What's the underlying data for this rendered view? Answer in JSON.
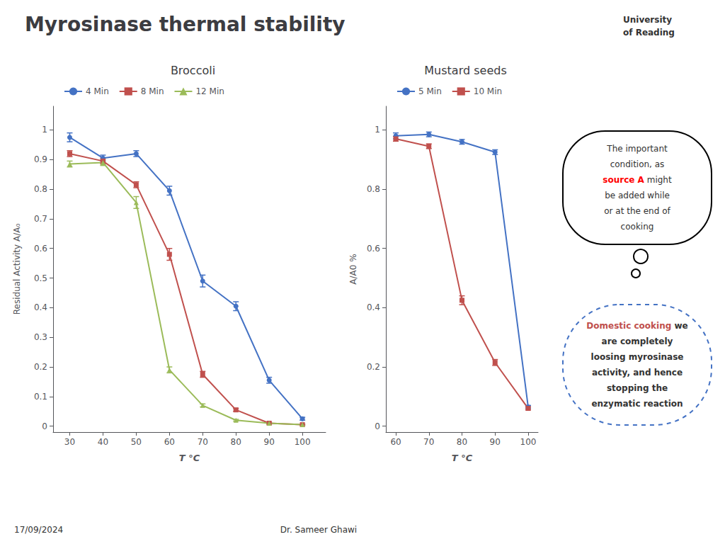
{
  "title": "Myrosinase thermal stability",
  "annotations": [
    {
      "color": "black",
      "lines": [
        "The important",
        "condition, as",
        [
          {
            "text": "source A",
            "color": "red"
          },
          {
            "text": "might"
          }
        ],
        "be added while",
        "or at the end of",
        "cooking"
      ]
    },
    {
      "color": "#4472C4",
      "lines": [
        [
          {
            "text": "Domestic cooking",
            "color": "#C0504D"
          },
          {
            "text": "we"
          }
        ],
        "are completely",
        "loosing myrosinase",
        "activity, and hence",
        "stopping the",
        "enzymatic reaction"
      ]
    },
    {
      "lines": [
        "University",
        "of Reading"
      ]
    },
    {
      "lines": [
        "17/09/2024"
      ]
    },
    {
      "lines": [
        "Dr. Sameer Ghawi"
      ]
    }
  ],
  "chart_data": [
    {
      "type": "line",
      "title": "Broccoli",
      "xlabel": "T °C",
      "ylabel": "Residual Activity A/A₀",
      "x": [
        30,
        40,
        50,
        60,
        70,
        80,
        90,
        100
      ],
      "xlim": [
        25,
        107
      ],
      "xticks": [
        30,
        40,
        50,
        60,
        70,
        80,
        90,
        100
      ],
      "ylim": [
        -0.02,
        1.08
      ],
      "yticks": [
        0,
        0.1,
        0.2,
        0.3,
        0.4,
        0.5,
        0.6,
        0.7,
        0.8,
        0.9,
        1
      ],
      "grid": false,
      "legend": "top",
      "series": [
        {
          "name": "4 Min",
          "color": "#4472C4",
          "marker": "circle",
          "values": [
            0.975,
            0.905,
            0.92,
            0.795,
            0.49,
            0.405,
            0.155,
            0.025
          ],
          "yerr": [
            0.015,
            0.01,
            0.01,
            0.015,
            0.02,
            0.015,
            0.01,
            0.005
          ]
        },
        {
          "name": "8 Min",
          "color": "#C0504D",
          "marker": "square",
          "values": [
            0.92,
            0.895,
            0.815,
            0.58,
            0.175,
            0.055,
            0.01,
            0.005
          ],
          "yerr": [
            0.01,
            0.01,
            0.01,
            0.02,
            0.01,
            0.005,
            0.003,
            0.002
          ]
        },
        {
          "name": "12 Min",
          "color": "#9BBB59",
          "marker": "triangle",
          "values": [
            0.885,
            0.89,
            0.755,
            0.19,
            0.07,
            0.02,
            0.01,
            0.005
          ],
          "yerr": [
            0.01,
            0.01,
            0.02,
            0.01,
            0.005,
            0.003,
            0.002,
            0.002
          ]
        }
      ]
    },
    {
      "type": "line",
      "title": "Mustard seeds",
      "xlabel": "T °C",
      "ylabel": "A/A0 %",
      "x": [
        60,
        70,
        80,
        90,
        100
      ],
      "xlim": [
        57,
        103
      ],
      "xticks": [
        60,
        70,
        80,
        90,
        100
      ],
      "ylim": [
        -0.02,
        1.08
      ],
      "yticks": [
        0,
        0.2,
        0.4,
        0.6,
        0.8,
        1
      ],
      "grid": false,
      "legend": "top",
      "series": [
        {
          "name": "5 Min",
          "color": "#4472C4",
          "marker": "circle",
          "values": [
            0.98,
            0.985,
            0.96,
            0.925,
            0.065
          ],
          "yerr": [
            0.01,
            0.008,
            0.008,
            0.008,
            0.005
          ]
        },
        {
          "name": "10 Min",
          "color": "#C0504D",
          "marker": "square",
          "values": [
            0.97,
            0.945,
            0.425,
            0.215,
            0.06
          ],
          "yerr": [
            0.008,
            0.008,
            0.015,
            0.01,
            0.005
          ]
        }
      ]
    }
  ]
}
